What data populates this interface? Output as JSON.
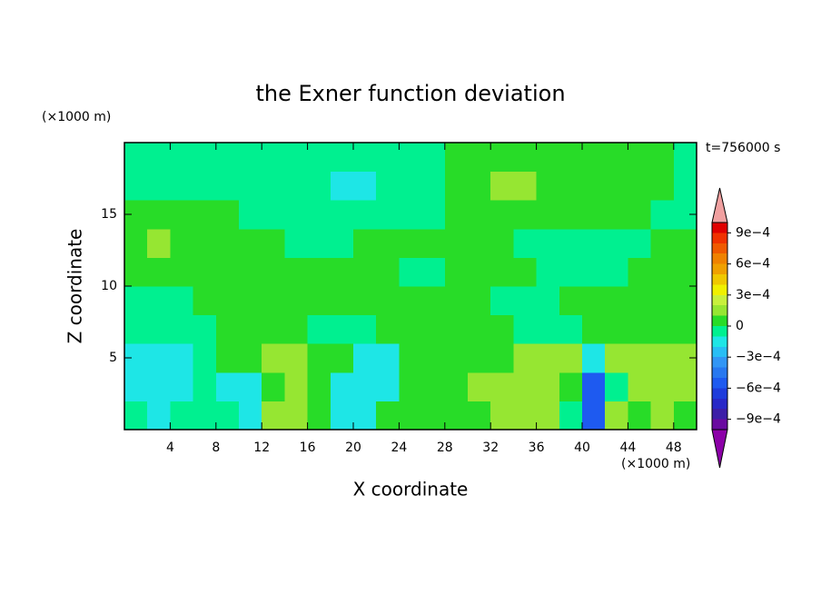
{
  "chart_data": {
    "type": "contour",
    "title": "the Exner function deviation",
    "subtitle": "t=756000 s",
    "x_label": "X coordinate",
    "y_label": "Z coordinate",
    "x_unit": "(×1000 m)",
    "y_unit": "(×1000 m)",
    "xlim": [
      0,
      50
    ],
    "ylim": [
      0,
      20
    ],
    "xticks": [
      4,
      8,
      12,
      16,
      20,
      24,
      28,
      32,
      36,
      40,
      44,
      48
    ],
    "yticks": [
      5,
      10,
      15
    ],
    "x": [
      1,
      3,
      5,
      7,
      9,
      11,
      13,
      15,
      17,
      19,
      21,
      23,
      25,
      27,
      29,
      31,
      33,
      35,
      37,
      39,
      41,
      43,
      45,
      47,
      49
    ],
    "y": [
      1,
      3,
      5,
      7,
      9,
      11,
      13,
      15,
      17,
      19
    ],
    "z": [
      [
        -5e-05,
        -0.00015,
        -5e-05,
        -5e-05,
        -5e-05,
        -0.00015,
        0.00015,
        0.00015,
        5e-05,
        -0.00015,
        -0.00015,
        5e-05,
        5e-05,
        5e-05,
        5e-05,
        5e-05,
        0.00015,
        0.00015,
        0.00015,
        -5e-05,
        -0.0006,
        0.00015,
        5e-05,
        0.00015,
        5e-05
      ],
      [
        -0.00015,
        -0.00015,
        -0.00015,
        -5e-05,
        -0.00015,
        -0.00015,
        5e-05,
        0.00015,
        5e-05,
        -0.00015,
        -0.00015,
        -0.00015,
        5e-05,
        5e-05,
        5e-05,
        0.00015,
        0.00015,
        0.00015,
        0.00015,
        5e-05,
        -0.0006,
        -5e-05,
        0.00015,
        0.00015,
        0.00015
      ],
      [
        -0.00015,
        -0.00015,
        -0.00015,
        -5e-05,
        5e-05,
        5e-05,
        0.00015,
        0.00015,
        5e-05,
        5e-05,
        -0.00015,
        -0.00015,
        5e-05,
        5e-05,
        5e-05,
        5e-05,
        5e-05,
        0.00015,
        0.00015,
        0.00015,
        -0.00015,
        0.00015,
        0.00015,
        0.00015,
        0.00015
      ],
      [
        -5e-05,
        -5e-05,
        -5e-05,
        -5e-05,
        5e-05,
        5e-05,
        5e-05,
        5e-05,
        -5e-05,
        -5e-05,
        -5e-05,
        5e-05,
        5e-05,
        5e-05,
        5e-05,
        5e-05,
        5e-05,
        -5e-05,
        -5e-05,
        -5e-05,
        5e-05,
        5e-05,
        5e-05,
        5e-05,
        5e-05
      ],
      [
        -5e-05,
        -5e-05,
        -5e-05,
        5e-05,
        5e-05,
        5e-05,
        5e-05,
        5e-05,
        5e-05,
        5e-05,
        5e-05,
        5e-05,
        5e-05,
        5e-05,
        5e-05,
        5e-05,
        -5e-05,
        -5e-05,
        -5e-05,
        5e-05,
        5e-05,
        5e-05,
        5e-05,
        5e-05,
        5e-05
      ],
      [
        5e-05,
        5e-05,
        5e-05,
        5e-05,
        5e-05,
        5e-05,
        5e-05,
        5e-05,
        5e-05,
        5e-05,
        5e-05,
        5e-05,
        -5e-05,
        -5e-05,
        5e-05,
        5e-05,
        5e-05,
        5e-05,
        -5e-05,
        -5e-05,
        -5e-05,
        -5e-05,
        5e-05,
        5e-05,
        5e-05
      ],
      [
        5e-05,
        0.00015,
        5e-05,
        5e-05,
        5e-05,
        5e-05,
        5e-05,
        -5e-05,
        -5e-05,
        -5e-05,
        5e-05,
        5e-05,
        5e-05,
        5e-05,
        5e-05,
        5e-05,
        5e-05,
        -5e-05,
        -5e-05,
        -5e-05,
        -5e-05,
        -5e-05,
        -5e-05,
        5e-05,
        5e-05
      ],
      [
        5e-05,
        5e-05,
        5e-05,
        5e-05,
        5e-05,
        -5e-05,
        -5e-05,
        -5e-05,
        -5e-05,
        -5e-05,
        -5e-05,
        -5e-05,
        -5e-05,
        -5e-05,
        5e-05,
        5e-05,
        5e-05,
        5e-05,
        5e-05,
        5e-05,
        5e-05,
        5e-05,
        5e-05,
        -5e-05,
        -5e-05
      ],
      [
        -5e-05,
        -5e-05,
        -5e-05,
        -5e-05,
        -5e-05,
        -5e-05,
        -5e-05,
        -5e-05,
        -5e-05,
        -0.00015,
        -0.00015,
        -5e-05,
        -5e-05,
        -5e-05,
        5e-05,
        5e-05,
        0.00015,
        0.00015,
        5e-05,
        5e-05,
        5e-05,
        5e-05,
        5e-05,
        5e-05,
        -5e-05
      ],
      [
        -5e-05,
        -5e-05,
        -5e-05,
        -5e-05,
        -5e-05,
        -5e-05,
        -5e-05,
        -5e-05,
        -5e-05,
        -5e-05,
        -5e-05,
        -5e-05,
        -5e-05,
        -5e-05,
        5e-05,
        5e-05,
        5e-05,
        5e-05,
        5e-05,
        5e-05,
        5e-05,
        5e-05,
        5e-05,
        5e-05,
        -5e-05
      ]
    ],
    "levels": [
      -0.001,
      -0.0009,
      -0.0008,
      -0.0007,
      -0.0006,
      -0.0005,
      -0.0004,
      -0.0003,
      -0.0002,
      -0.0001,
      0,
      0.0001,
      0.0002,
      0.0003,
      0.0004,
      0.0005,
      0.0006,
      0.0007,
      0.0008,
      0.0009,
      0.001
    ],
    "colors": [
      "#6a0aa0",
      "#3c1ea8",
      "#2828c8",
      "#1e3cdc",
      "#1e5af0",
      "#2878f0",
      "#3296f5",
      "#28bef5",
      "#1ee6e6",
      "#00f090",
      "#28dc28",
      "#96e632",
      "#c8f03c",
      "#f0f000",
      "#f0c800",
      "#f0a000",
      "#f08200",
      "#f05a00",
      "#f03200",
      "#e00000"
    ],
    "extend_colors": [
      "#8c00a8",
      "#f0a0a0"
    ],
    "colorbar_ticks": [
      {
        "value": -0.0009,
        "label": "−9e−4"
      },
      {
        "value": -0.0006,
        "label": "−6e−4"
      },
      {
        "value": -0.0003,
        "label": "−3e−4"
      },
      0,
      {
        "value": 0.0003,
        "label": "3e−4"
      },
      {
        "value": 0.0006,
        "label": "6e−4"
      },
      {
        "value": 0.0009,
        "label": "9e−4"
      }
    ]
  }
}
